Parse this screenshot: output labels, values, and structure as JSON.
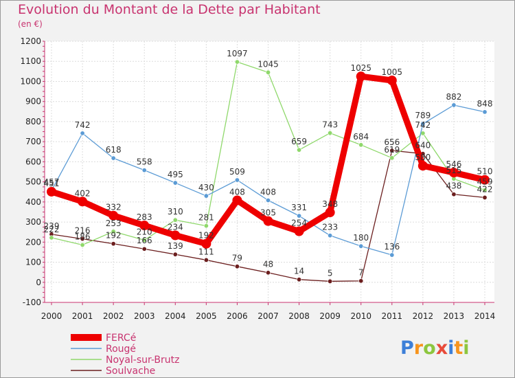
{
  "chart_data": {
    "type": "line",
    "title": "Evolution du Montant de la Dette par Habitant",
    "subtitle": "(en €)",
    "xlabel": "",
    "ylabel": "",
    "categories": [
      "2000",
      "2001",
      "2002",
      "2003",
      "2004",
      "2005",
      "2006",
      "2007",
      "2008",
      "2009",
      "2010",
      "2011",
      "2012",
      "2013",
      "2014"
    ],
    "ylim": [
      -100,
      1200
    ],
    "yticks": [
      -100,
      0,
      100,
      200,
      300,
      400,
      500,
      600,
      700,
      800,
      900,
      1000,
      1100,
      1200
    ],
    "series": [
      {
        "name": "Soulvache",
        "color": "#6b1e1e",
        "values": [
          239,
          216,
          192,
          166,
          139,
          111,
          79,
          48,
          14,
          5,
          7,
          656,
          640,
          438,
          422
        ]
      },
      {
        "name": "Noyal-sur-Brutz",
        "color": "#8fd86b",
        "values": [
          222,
          186,
          253,
          210,
          310,
          281,
          1097,
          1045,
          659,
          743,
          684,
          619,
          742,
          515,
          459
        ]
      },
      {
        "name": "Rougé",
        "color": "#5b9bd5",
        "values": [
          457,
          742,
          618,
          558,
          495,
          430,
          509,
          408,
          331,
          233,
          180,
          136,
          789,
          882,
          848
        ]
      },
      {
        "name": "FERCé",
        "color": "#ee0000",
        "values": [
          451,
          402,
          332,
          283,
          234,
          192,
          408,
          305,
          254,
          348,
          1025,
          1005,
          580,
          546,
          510
        ]
      }
    ],
    "legend_order": [
      "FERCé",
      "Rougé",
      "Noyal-sur-Brutz",
      "Soulvache"
    ],
    "legend_position": "bottom-left"
  },
  "logo": {
    "text": "Proxiti",
    "letters": [
      "P",
      "r",
      "o",
      "x",
      "i",
      "t",
      "i"
    ],
    "colors": [
      "#3d7fd8",
      "#f7941d",
      "#8dc63f",
      "#e84b3a",
      "#3d7fd8",
      "#f7941d",
      "#8dc63f"
    ]
  }
}
